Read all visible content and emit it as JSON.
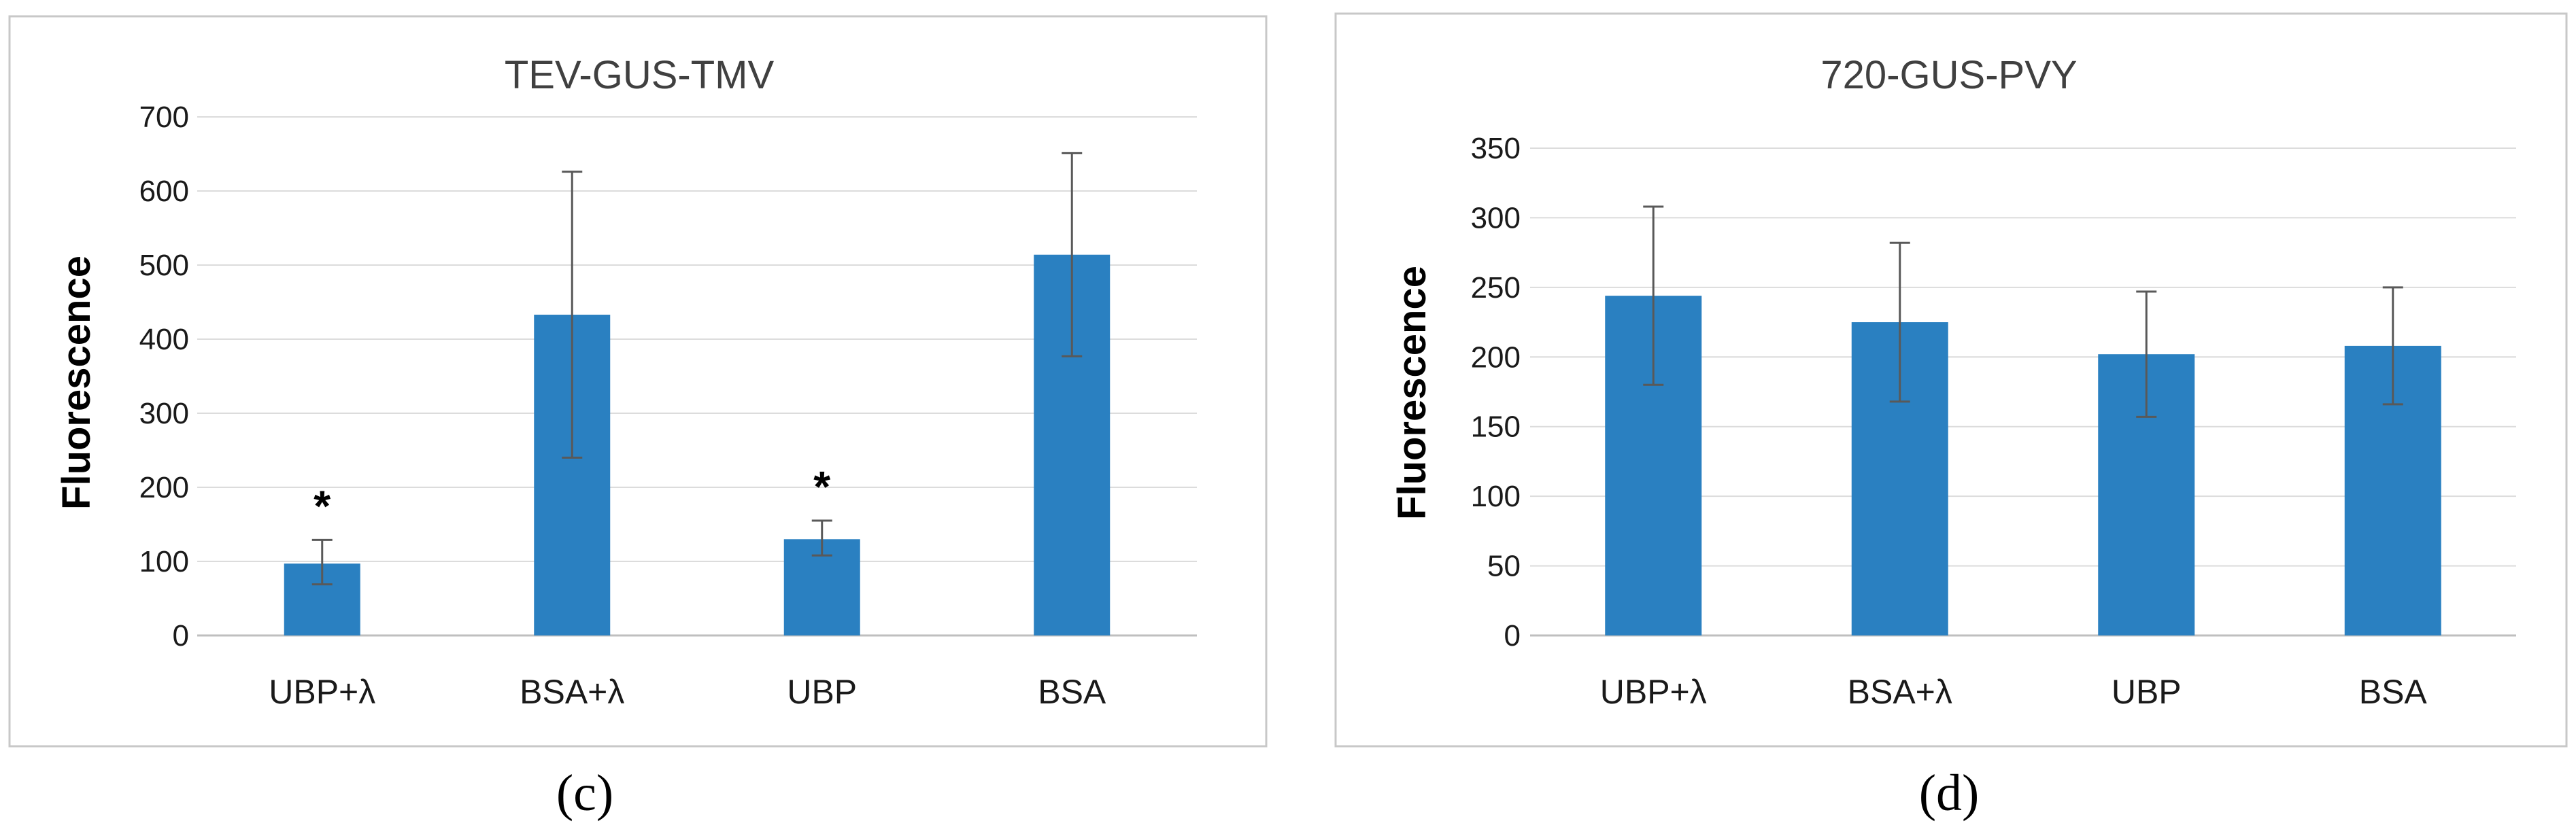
{
  "colors": {
    "bar": "#2a80c1",
    "grid": "#dcdcdc",
    "frame": "#c8c8c8",
    "error_bar": "#595959"
  },
  "chart_data": [
    {
      "type": "bar",
      "title": "TEV-GUS-TMV",
      "ylabel": "Fluorescence",
      "panel_label": "(c)",
      "categories": [
        "UBP+λ",
        "BSA+λ",
        "UBP",
        "BSA"
      ],
      "values": [
        97,
        433,
        130,
        514
      ],
      "error_plus": [
        32,
        193,
        25,
        137
      ],
      "error_minus": [
        28,
        193,
        22,
        137
      ],
      "significance": [
        "*",
        "",
        "*",
        ""
      ],
      "ylim": [
        0,
        700
      ],
      "yticks": [
        "0",
        "100",
        "200",
        "300",
        "400",
        "500",
        "600",
        "700"
      ],
      "grid": true
    },
    {
      "type": "bar",
      "title": "720-GUS-PVY",
      "ylabel": "Fluorescence",
      "panel_label": "(d)",
      "categories": [
        "UBP+λ",
        "BSA+λ",
        "UBP",
        "BSA"
      ],
      "values": [
        244,
        225,
        202,
        208
      ],
      "error_plus": [
        64,
        57,
        45,
        42
      ],
      "error_minus": [
        64,
        57,
        45,
        42
      ],
      "significance": [
        "",
        "",
        "",
        ""
      ],
      "ylim": [
        0,
        350
      ],
      "yticks": [
        "0",
        "50",
        "100",
        "150",
        "200",
        "250",
        "300",
        "350"
      ],
      "grid": true
    }
  ]
}
